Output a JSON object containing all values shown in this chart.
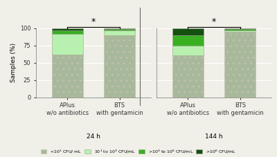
{
  "groups": [
    "24 h",
    "144 h"
  ],
  "bars": [
    {
      "label": "APlus\nw/o antibiotics",
      "group": "24 h",
      "s1": 62,
      "s2": 30,
      "s3": 5,
      "s4": 3
    },
    {
      "label": "BTS\nwith gentamicin",
      "group": "24 h",
      "s1": 90,
      "s2": 7,
      "s3": 2,
      "s4": 1
    },
    {
      "label": "APlus\nw/o antibiotics",
      "group": "144 h",
      "s1": 61,
      "s2": 14,
      "s3": 15,
      "s4": 10
    },
    {
      "label": "BTS\nwith gentamicin",
      "group": "144 h",
      "s1": 95,
      "s2": 2,
      "s3": 2,
      "s4": 1
    }
  ],
  "color_s1": "#a8b89a",
  "color_s2": "#b8f0b0",
  "color_s3": "#38b020",
  "color_s4": "#145010",
  "hatch_s1": "..",
  "ylabel": "Samples (%)",
  "ylim": [
    0,
    100
  ],
  "yticks": [
    0,
    25,
    50,
    75,
    100
  ],
  "bar_width": 0.6,
  "background_color": "#f0f0e8",
  "grid_color": "#ffffff",
  "spine_color": "#888888",
  "group_labels": [
    "24 h",
    "144 h"
  ]
}
